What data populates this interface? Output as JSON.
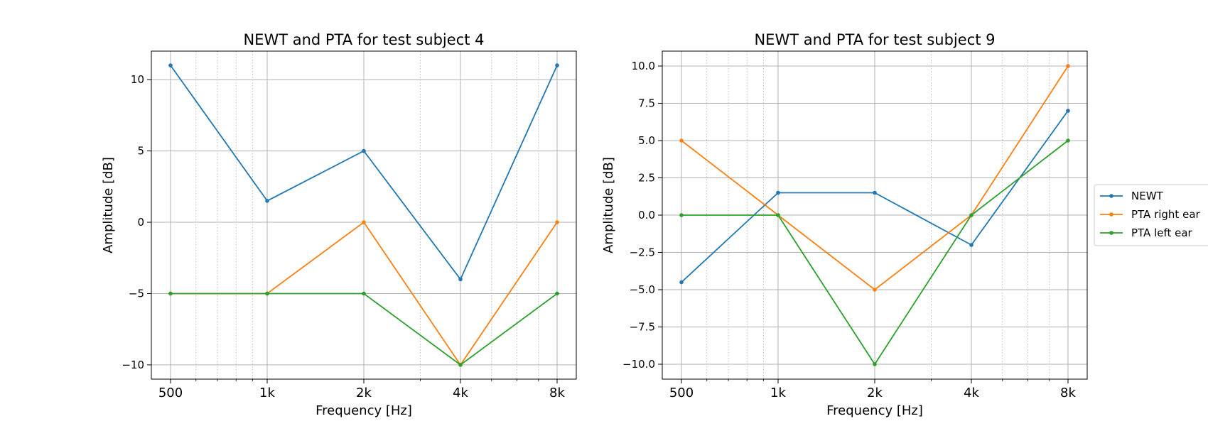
{
  "chart_data": [
    {
      "type": "line",
      "title": "NEWT and PTA for test subject 4",
      "xlabel": "Frequency [Hz]",
      "ylabel": "Amplitude [dB]",
      "x_scale": "log",
      "x": [
        500,
        1000,
        2000,
        4000,
        8000
      ],
      "x_tick_labels": [
        "500",
        "1k",
        "2k",
        "4k",
        "8k"
      ],
      "y_ticks": [
        10,
        5,
        0,
        -5,
        -10
      ],
      "y_tick_labels": [
        "10",
        "5",
        "0",
        "−5",
        "−10"
      ],
      "ylim": [
        -11,
        12
      ],
      "grid": true,
      "series": [
        {
          "name": "NEWT",
          "color": "#1f77b4",
          "values": [
            11,
            1.5,
            5,
            -4,
            11
          ]
        },
        {
          "name": "PTA right ear",
          "color": "#ff7f0e",
          "values": [
            -5,
            -5,
            0,
            -10,
            0
          ]
        },
        {
          "name": "PTA left ear",
          "color": "#2ca02c",
          "values": [
            -5,
            -5,
            -5,
            -10,
            -5
          ]
        }
      ]
    },
    {
      "type": "line",
      "title": "NEWT and PTA for test subject 9",
      "xlabel": "Frequency [Hz]",
      "ylabel": "Amplitude [dB]",
      "x_scale": "log",
      "x": [
        500,
        1000,
        2000,
        4000,
        8000
      ],
      "x_tick_labels": [
        "500",
        "1k",
        "2k",
        "4k",
        "8k"
      ],
      "y_ticks": [
        10,
        7.5,
        5,
        2.5,
        0,
        -2.5,
        -5,
        -7.5,
        -10
      ],
      "y_tick_labels": [
        "10.0",
        "7.5",
        "5.0",
        "2.5",
        "0.0",
        "−2.5",
        "−5.0",
        "−7.5",
        "−10.0"
      ],
      "ylim": [
        -11,
        11
      ],
      "grid": true,
      "legend_position": "right, outside",
      "series": [
        {
          "name": "NEWT",
          "color": "#1f77b4",
          "values": [
            -4.5,
            1.5,
            1.5,
            -2,
            7
          ]
        },
        {
          "name": "PTA right ear",
          "color": "#ff7f0e",
          "values": [
            5,
            0,
            -5,
            0,
            10
          ]
        },
        {
          "name": "PTA left ear",
          "color": "#2ca02c",
          "values": [
            0,
            0,
            -10,
            0,
            5
          ]
        }
      ]
    }
  ]
}
